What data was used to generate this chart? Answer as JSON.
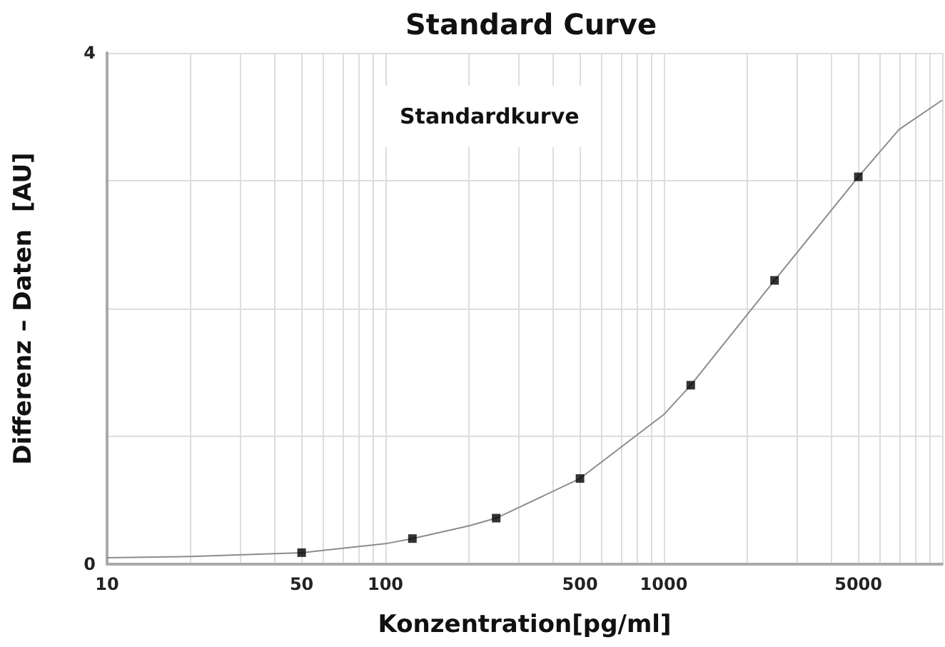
{
  "chart_data": {
    "type": "scatter",
    "title": "Standard Curve",
    "xlabel": "Konzentration[pg/ml]",
    "ylabel": "Differenz – Daten  [AU]",
    "annotations": [
      "Standardkurve"
    ],
    "log": "x",
    "grid": true,
    "marker": "square",
    "xlim": [
      10,
      10000
    ],
    "ylim": [
      0,
      4
    ],
    "xticks": [
      10,
      {
        "value": 20,
        "label": null
      },
      {
        "value": 30,
        "label": null
      },
      {
        "value": 40,
        "label": null
      },
      50,
      {
        "value": 60,
        "label": null
      },
      {
        "value": 70,
        "label": null
      },
      {
        "value": 80,
        "label": null
      },
      {
        "value": 90,
        "label": null
      },
      100,
      {
        "value": 200,
        "label": null
      },
      {
        "value": 300,
        "label": null
      },
      {
        "value": 400,
        "label": null
      },
      500,
      {
        "value": 600,
        "label": null
      },
      {
        "value": 700,
        "label": null
      },
      {
        "value": 800,
        "label": null
      },
      {
        "value": 900,
        "label": null
      },
      1000,
      {
        "value": 2000,
        "label": null
      },
      {
        "value": 3000,
        "label": null
      },
      {
        "value": 4000,
        "label": null
      },
      5000,
      {
        "value": 6000,
        "label": null
      },
      {
        "value": 7000,
        "label": null
      },
      {
        "value": 8000,
        "label": null
      },
      {
        "value": 9000,
        "label": null
      },
      {
        "value": 10000,
        "label": null
      }
    ],
    "yticks": [
      0,
      {
        "value": 1,
        "label": null
      },
      {
        "value": 2,
        "label": null
      },
      {
        "value": 3,
        "label": null
      },
      4
    ],
    "series": [
      {
        "type": "line",
        "marker": "none",
        "color": "#8c8c8c",
        "x": [
          10,
          20,
          50,
          100,
          125,
          200,
          250,
          500,
          1000,
          1250,
          2500,
          5000,
          7000,
          10000
        ],
        "values": [
          0.05,
          0.06,
          0.09,
          0.16,
          0.2,
          0.3,
          0.36,
          0.67,
          1.17,
          1.4,
          2.22,
          3.03,
          3.4,
          3.63
        ]
      },
      {
        "color": "#000000",
        "x": [
          50,
          125,
          250,
          500,
          1250,
          2500,
          5000
        ],
        "values": [
          0.09,
          0.2,
          0.36,
          0.67,
          1.4,
          2.22,
          3.03
        ]
      }
    ]
  }
}
